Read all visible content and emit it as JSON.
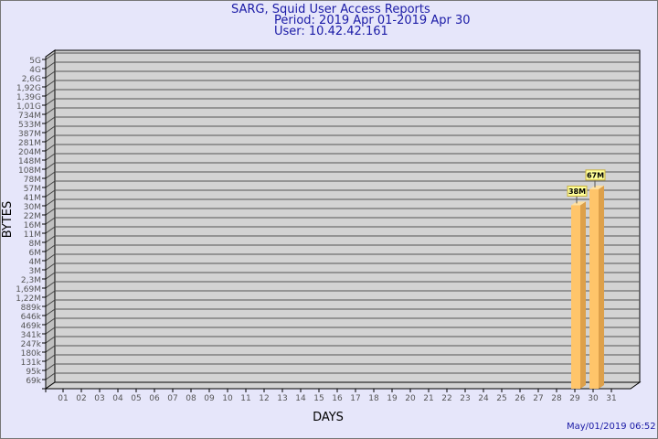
{
  "header": {
    "title": "SARG, Squid User Access Reports",
    "period": "Period: 2019 Apr 01-2019 Apr 30",
    "user": "User: 10.42.42.161"
  },
  "footer": {
    "timestamp": "May/01/2019 06:52"
  },
  "chart_data": {
    "type": "bar",
    "title": "SARG, Squid User Access Reports",
    "xlabel": "DAYS",
    "ylabel": "BYTES",
    "yscale": "log",
    "grid": true,
    "three_d": true,
    "colors": {
      "bar": "#ffc56a",
      "bar_side": "#dda04a",
      "wall": "#d3d3d3",
      "label_bg": "#ffff99",
      "text": "#555555"
    },
    "y_ticks": [
      "5G",
      "4G",
      "2,6G",
      "1,92G",
      "1,39G",
      "1,01G",
      "734M",
      "533M",
      "387M",
      "281M",
      "204M",
      "148M",
      "108M",
      "78M",
      "57M",
      "41M",
      "30M",
      "22M",
      "16M",
      "11M",
      "8M",
      "6M",
      "4M",
      "3M",
      "2,3M",
      "1,69M",
      "1,22M",
      "889k",
      "646k",
      "469k",
      "341k",
      "247k",
      "180k",
      "131k",
      "95k",
      "69k"
    ],
    "categories": [
      "01",
      "02",
      "03",
      "04",
      "05",
      "06",
      "07",
      "08",
      "09",
      "10",
      "11",
      "12",
      "13",
      "14",
      "15",
      "16",
      "17",
      "18",
      "19",
      "20",
      "21",
      "22",
      "23",
      "24",
      "25",
      "26",
      "27",
      "28",
      "29",
      "30",
      "31"
    ],
    "bars": [
      {
        "day": "29",
        "value": 38000000,
        "label": "38M"
      },
      {
        "day": "30",
        "value": 67000000,
        "label": "67M"
      }
    ]
  }
}
